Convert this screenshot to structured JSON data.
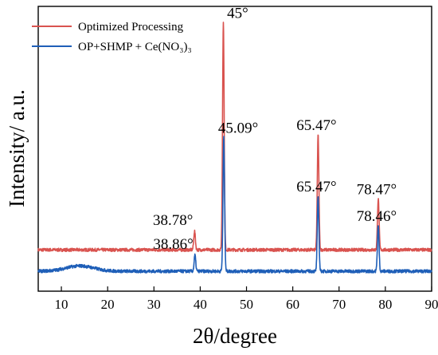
{
  "chart_data": {
    "type": "line",
    "xlabel": "2θ/degree",
    "ylabel": "Intensity/ a.u.",
    "xlim": [
      5,
      90
    ],
    "xticks": [
      10,
      20,
      30,
      40,
      50,
      60,
      70,
      80,
      90
    ],
    "y_tick_labels_shown": false,
    "grid": false,
    "legend_position": "top-left",
    "series": [
      {
        "name": "Optimized Processing",
        "color": "#d9534f",
        "baseline": 0.08,
        "noise": 0.006,
        "peaks": [
          {
            "x": 38.78,
            "height": 0.07,
            "label": "38.78°"
          },
          {
            "x": 45,
            "height": 0.85,
            "label": "45°"
          },
          {
            "x": 65.47,
            "height": 0.43,
            "label": "65.47°"
          },
          {
            "x": 78.47,
            "height": 0.19,
            "label": "78.47°"
          }
        ]
      },
      {
        "name": "OP+SHMP + Ce(NO₃)₃",
        "color": "#1f5fb8",
        "baseline": 0.0,
        "noise": 0.006,
        "hump": {
          "x": 14,
          "height": 0.02
        },
        "peaks": [
          {
            "x": 38.86,
            "height": 0.06,
            "label": "38.86°"
          },
          {
            "x": 45.09,
            "height": 0.5,
            "label": "45.09°"
          },
          {
            "x": 65.47,
            "height": 0.28,
            "label": "65.47°"
          },
          {
            "x": 78.46,
            "height": 0.17,
            "label": "78.46°"
          }
        ]
      }
    ]
  }
}
